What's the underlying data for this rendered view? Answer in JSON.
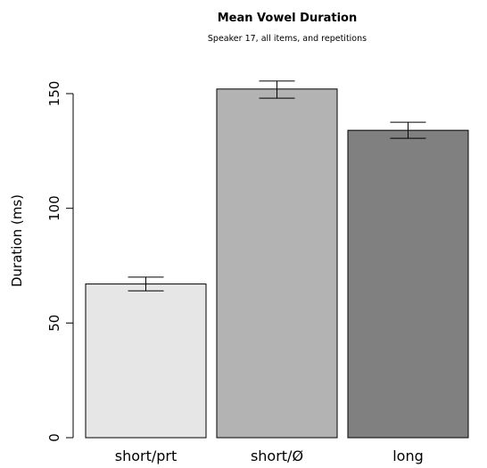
{
  "chart_data": {
    "type": "bar",
    "title": "Mean Vowel Duration",
    "subtitle": "Speaker 17, all items, and repetitions",
    "xlabel": "",
    "ylabel": "Duration (ms)",
    "ylim": [
      0,
      155
    ],
    "yticks": [
      0,
      50,
      100,
      150
    ],
    "grid": false,
    "legend": "none",
    "categories": [
      "short/prt",
      "short/Ø",
      "long"
    ],
    "values": [
      67,
      152,
      134
    ],
    "error_low": [
      64,
      148,
      130.5
    ],
    "error_high": [
      70,
      155.5,
      137.5
    ],
    "colors": [
      "#e6e6e6",
      "#b3b3b3",
      "#808080"
    ]
  }
}
